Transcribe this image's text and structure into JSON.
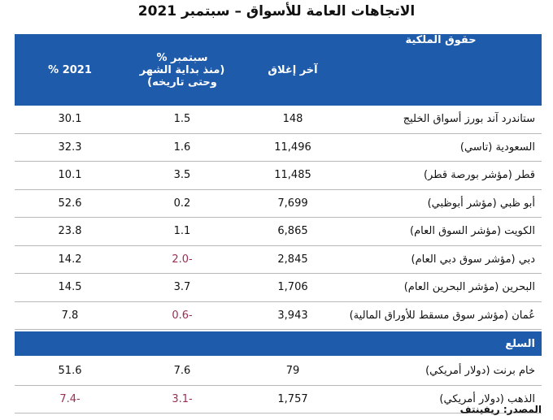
{
  "header": {
    "title": "الاتجاهات العامة للأسواق – سبتمبر 2021"
  },
  "table": {
    "columns": [
      [
        "حقوق الملكية"
      ],
      [
        "آخر إغلاق"
      ],
      [
        "سبتمبر %",
        "(منذ بداية الشهر",
        "وحتى تاريخه)"
      ],
      [
        "2021 %"
      ]
    ],
    "rows": [
      [
        "ستاندرد آند بورز أسواق الخليج",
        "148",
        "1.5",
        "30.1"
      ],
      [
        "السعودية (تاسي)",
        "11,496",
        "1.6",
        "32.3"
      ],
      [
        "قطر (مؤشر بورصة قطر)",
        "11,485",
        "3.5",
        "10.1"
      ],
      [
        "أبو ظبي (مؤشر أبوظبي)",
        "7,699",
        "0.2",
        "52.6"
      ],
      [
        "الكويت (مؤشر السوق العام)",
        "6,865",
        "1.1",
        "23.8"
      ],
      [
        "دبي (مؤشر سوق دبي العام)",
        "2,845",
        "-2.0",
        "14.2"
      ],
      [
        "البحرين (مؤشر البحرين العام)",
        "1,706",
        "3.7",
        "14.5"
      ],
      [
        "عُمان (مؤشر سوق مسقط للأوراق المالية)",
        "3,943",
        "-0.6",
        "7.8"
      ]
    ],
    "section": "السلع",
    "section_rows": [
      [
        "خام برنت (دولار أمريكي)",
        "79",
        "7.6",
        "51.6"
      ],
      [
        "الذهب (دولار أمريكي)",
        "1,757",
        "-3.1",
        "-7.4"
      ]
    ]
  },
  "source": "المصدر: ريفينتف"
}
